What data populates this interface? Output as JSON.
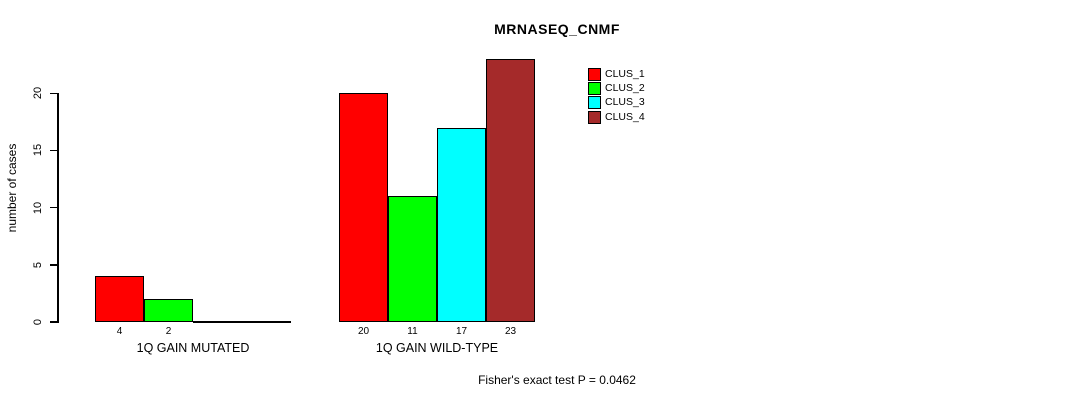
{
  "chart_data": {
    "type": "bar",
    "title": "MRNASEQ_CNMF",
    "ylabel": "number of cases",
    "xlabel": "",
    "yticks": [
      0,
      5,
      10,
      15,
      20
    ],
    "ylim": [
      0,
      23
    ],
    "grid": false,
    "legend_position": "top-right-inside",
    "categories": [
      "1Q GAIN MUTATED",
      "1Q GAIN WILD-TYPE"
    ],
    "series": [
      {
        "name": "CLUS_1",
        "color": "#FF0000",
        "values": [
          4,
          20
        ]
      },
      {
        "name": "CLUS_2",
        "color": "#00FF00",
        "values": [
          2,
          11
        ]
      },
      {
        "name": "CLUS_3",
        "color": "#00FFFF",
        "values": [
          0,
          17
        ]
      },
      {
        "name": "CLUS_4",
        "color": "#A52A2A",
        "values": [
          0,
          23
        ]
      }
    ],
    "groups": [
      {
        "label": "1Q GAIN MUTATED",
        "values": [
          4,
          2,
          0,
          0
        ]
      },
      {
        "label": "1Q GAIN WILD-TYPE",
        "values": [
          20,
          11,
          17,
          23
        ]
      }
    ],
    "bar_value_labels_shown_for_zero": false,
    "caption": "Fisher's exact test P = 0.0462"
  }
}
